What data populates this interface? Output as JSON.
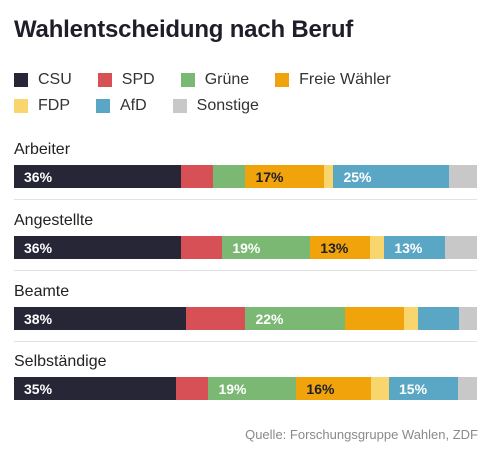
{
  "title": "Wahlentscheidung nach Beruf",
  "source": "Quelle: Forschungsgruppe Wahlen, ZDF",
  "chart_data": {
    "type": "bar",
    "orientation": "horizontal",
    "stacked": true,
    "unit": "%",
    "categories": [
      "Arbeiter",
      "Angestellte",
      "Beamte",
      "Selbständige"
    ],
    "series": [
      {
        "name": "CSU",
        "color": "#262637",
        "values": [
          36,
          36,
          38,
          35
        ],
        "labels": [
          "36%",
          "36%",
          "38%",
          "35%"
        ],
        "label_color": "#ffffff"
      },
      {
        "name": "SPD",
        "color": "#d75055",
        "values": [
          7,
          9,
          13,
          7
        ],
        "labels": [
          "",
          "",
          "",
          ""
        ],
        "label_color": "#ffffff"
      },
      {
        "name": "Grüne",
        "color": "#7bb874",
        "values": [
          7,
          19,
          22,
          19
        ],
        "labels": [
          "",
          "19%",
          "22%",
          "19%"
        ],
        "label_color": "#ffffff"
      },
      {
        "name": "Freie Wähler",
        "color": "#f0a30a",
        "values": [
          17,
          13,
          13,
          16
        ],
        "labels": [
          "17%",
          "13%",
          "",
          "16%"
        ],
        "label_color": "#1e1e2a"
      },
      {
        "name": "FDP",
        "color": "#f8d66d",
        "values": [
          2,
          3,
          3,
          4
        ],
        "labels": [
          "",
          "",
          "",
          ""
        ],
        "label_color": "#1e1e2a"
      },
      {
        "name": "AfD",
        "color": "#5aa7c5",
        "values": [
          25,
          13,
          9,
          15
        ],
        "labels": [
          "25%",
          "13%",
          "",
          "15%"
        ],
        "label_color": "#ffffff"
      },
      {
        "name": "Sonstige",
        "color": "#c8c8c8",
        "values": [
          6,
          7,
          4,
          4
        ],
        "labels": [
          "",
          "",
          "",
          ""
        ],
        "label_color": "#ffffff"
      }
    ],
    "xlim": [
      0,
      100
    ],
    "legend_position": "top",
    "grid": false
  }
}
